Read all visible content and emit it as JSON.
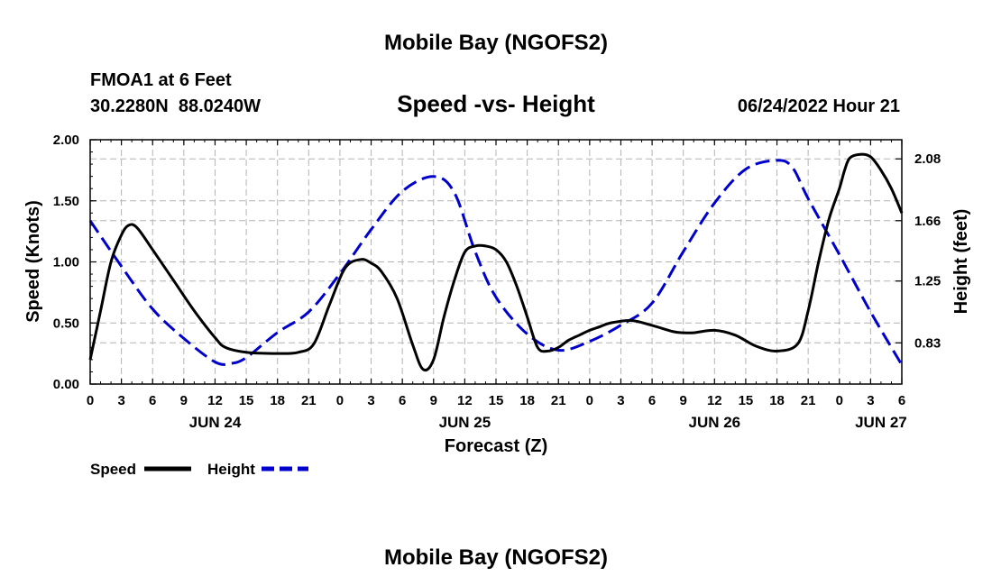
{
  "title": "Mobile Bay (NGOFS2)",
  "footer_title": "Mobile Bay (NGOFS2)",
  "station": "FMOA1 at 6 Feet",
  "coords": "30.2280N  88.0240W",
  "plot_title": "Speed -vs- Height",
  "timestamp": "06/24/2022 Hour 21",
  "chart_data": {
    "type": "line",
    "xlabel": "Forecast (Z)",
    "ylabel_left": "Speed (Knots)",
    "ylabel_right": "Height (feet)",
    "xlim": [
      0,
      78
    ],
    "ylim_left": [
      0,
      2.0
    ],
    "ylim_right": [
      0.55,
      2.21
    ],
    "x_ticks": [
      0,
      3,
      6,
      9,
      12,
      15,
      18,
      21,
      24,
      27,
      30,
      33,
      36,
      39,
      42,
      45,
      48,
      51,
      54,
      57,
      60,
      63,
      66,
      69,
      72,
      75,
      78
    ],
    "x_tick_labels": [
      "0",
      "3",
      "6",
      "9",
      "12",
      "15",
      "18",
      "21",
      "0",
      "3",
      "6",
      "9",
      "12",
      "15",
      "18",
      "21",
      "0",
      "3",
      "6",
      "9",
      "12",
      "15",
      "18",
      "21",
      "0",
      "3",
      "6"
    ],
    "date_labels": [
      {
        "label": "JUN 24",
        "x": 12
      },
      {
        "label": "JUN 25",
        "x": 36
      },
      {
        "label": "JUN 26",
        "x": 60
      },
      {
        "label": "JUN 27",
        "x": 76
      }
    ],
    "y_left_ticks": [
      0.0,
      0.5,
      1.0,
      1.5,
      2.0
    ],
    "y_left_tick_labels": [
      "0.00",
      "0.50",
      "1.00",
      "1.50",
      "2.00"
    ],
    "y_right_ticks": [
      0.83,
      1.25,
      1.66,
      2.08
    ],
    "y_right_tick_labels": [
      "0.83",
      "1.25",
      "1.66",
      "2.08"
    ],
    "grid": true,
    "legend_position": "bottom-left",
    "series": [
      {
        "name": "Speed",
        "axis": "left",
        "color": "#000000",
        "dash": "solid",
        "x": [
          0,
          1,
          2,
          3,
          3.7,
          4.5,
          6,
          8,
          10,
          12,
          13,
          15,
          18,
          20,
          21.5,
          23,
          24.5,
          26,
          27,
          28,
          29.5,
          31,
          32,
          33,
          34,
          35,
          36,
          37,
          38,
          39,
          40,
          41,
          42,
          43,
          44,
          45,
          46,
          47,
          48,
          49,
          50,
          52,
          54,
          56,
          57,
          58,
          60,
          62,
          64,
          66,
          68,
          69,
          70,
          71,
          72,
          72.5,
          73,
          74,
          75,
          76,
          77,
          78
        ],
        "values": [
          0.2,
          0.6,
          1.0,
          1.22,
          1.3,
          1.28,
          1.1,
          0.85,
          0.6,
          0.38,
          0.3,
          0.26,
          0.25,
          0.26,
          0.33,
          0.65,
          0.95,
          1.02,
          0.99,
          0.92,
          0.7,
          0.32,
          0.12,
          0.2,
          0.55,
          0.85,
          1.08,
          1.13,
          1.13,
          1.1,
          1.0,
          0.8,
          0.55,
          0.3,
          0.27,
          0.3,
          0.36,
          0.4,
          0.44,
          0.47,
          0.5,
          0.52,
          0.48,
          0.43,
          0.42,
          0.42,
          0.44,
          0.4,
          0.31,
          0.27,
          0.33,
          0.6,
          1.0,
          1.35,
          1.6,
          1.75,
          1.85,
          1.88,
          1.86,
          1.75,
          1.6,
          1.4
        ]
      },
      {
        "name": "Height",
        "axis": "right",
        "color": "#0000cc",
        "dash": "dashed",
        "x": [
          0,
          3,
          6,
          9,
          12,
          13.5,
          15,
          18,
          21,
          24,
          27,
          30,
          33,
          35,
          37,
          39,
          42,
          45,
          48,
          51,
          54,
          57,
          60,
          63,
          66,
          67.5,
          69,
          72,
          75,
          78
        ],
        "values": [
          1.66,
          1.35,
          1.06,
          0.86,
          0.7,
          0.69,
          0.73,
          0.9,
          1.04,
          1.3,
          1.6,
          1.86,
          1.96,
          1.85,
          1.45,
          1.14,
          0.89,
          0.78,
          0.84,
          0.95,
          1.1,
          1.45,
          1.78,
          2.01,
          2.07,
          2.02,
          1.81,
          1.43,
          1.04,
          0.68
        ]
      }
    ]
  }
}
